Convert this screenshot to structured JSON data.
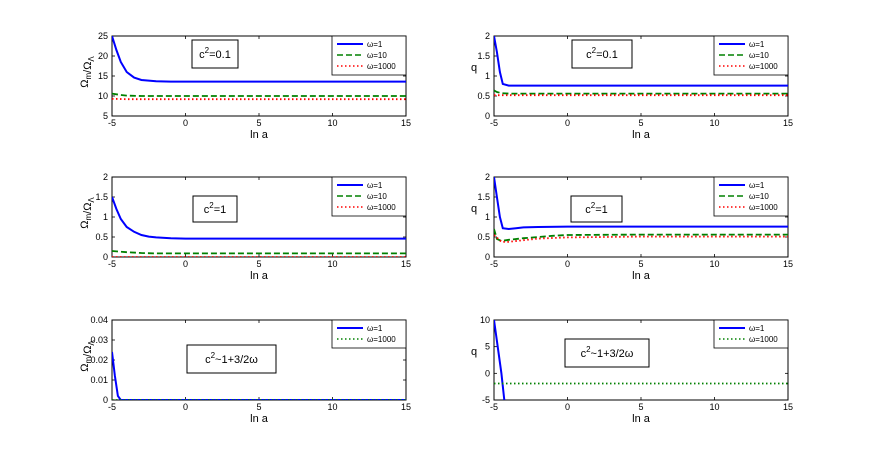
{
  "chart_data": [
    {
      "type": "line",
      "xlabel": "ln a",
      "ylabel": "Ω_m/Ω_Λ",
      "xlim": [
        -5,
        15
      ],
      "ylim": [
        5,
        25
      ],
      "xticks": [
        -5,
        0,
        5,
        10,
        15
      ],
      "yticks": [
        5,
        10,
        15,
        20,
        25
      ],
      "annotation": "c²=0.1",
      "legend_position": "top-right",
      "series": [
        {
          "name": "ω=1",
          "color": "#0000ff",
          "style": "solid",
          "x": [
            -5,
            -4.7,
            -4.4,
            -4,
            -3.5,
            -3,
            -2,
            -1,
            0,
            2,
            5,
            10,
            15
          ],
          "y": [
            25,
            21.5,
            18.5,
            16,
            14.6,
            14,
            13.7,
            13.6,
            13.6,
            13.6,
            13.6,
            13.6,
            13.6
          ]
        },
        {
          "name": "ω=10",
          "color": "#008000",
          "style": "dashed",
          "x": [
            -5,
            -4.5,
            -4,
            -3,
            -2,
            0,
            5,
            10,
            15
          ],
          "y": [
            10.6,
            10.3,
            10.1,
            10,
            10,
            10,
            10,
            10,
            10
          ]
        },
        {
          "name": "ω=1000",
          "color": "#ff0000",
          "style": "dotted",
          "x": [
            -5,
            -4,
            -2,
            0,
            5,
            10,
            15
          ],
          "y": [
            9.3,
            9.2,
            9.2,
            9.2,
            9.2,
            9.2,
            9.2
          ]
        }
      ]
    },
    {
      "type": "line",
      "xlabel": "ln a",
      "ylabel": "q",
      "xlim": [
        -5,
        15
      ],
      "ylim": [
        0,
        2
      ],
      "xticks": [
        -5,
        0,
        5,
        10,
        15
      ],
      "yticks": [
        0,
        0.5,
        1,
        1.5,
        2
      ],
      "annotation": "c²=0.1",
      "legend_position": "top-right",
      "series": [
        {
          "name": "ω=1",
          "color": "#0000ff",
          "style": "solid",
          "x": [
            -5,
            -4.8,
            -4.6,
            -4.4,
            -4,
            -3,
            0,
            5,
            10,
            15
          ],
          "y": [
            2,
            1.6,
            1.1,
            0.8,
            0.76,
            0.76,
            0.76,
            0.76,
            0.76,
            0.76
          ]
        },
        {
          "name": "ω=10",
          "color": "#008000",
          "style": "dashed",
          "x": [
            -5,
            -4.8,
            -4.5,
            -4,
            -2,
            0,
            5,
            10,
            15
          ],
          "y": [
            0.64,
            0.6,
            0.57,
            0.56,
            0.56,
            0.56,
            0.56,
            0.56,
            0.56
          ]
        },
        {
          "name": "ω=1000",
          "color": "#ff0000",
          "style": "dotted",
          "x": [
            -5,
            -4,
            -2,
            0,
            5,
            10,
            15
          ],
          "y": [
            0.52,
            0.52,
            0.52,
            0.52,
            0.52,
            0.52,
            0.52
          ]
        }
      ]
    },
    {
      "type": "line",
      "xlabel": "ln a",
      "ylabel": "Ω_m/Ω_Λ",
      "xlim": [
        -5,
        15
      ],
      "ylim": [
        0,
        2
      ],
      "xticks": [
        -5,
        0,
        5,
        10,
        15
      ],
      "yticks": [
        0,
        0.5,
        1,
        1.5,
        2
      ],
      "annotation": "c²=1",
      "legend_position": "top-right",
      "series": [
        {
          "name": "ω=1",
          "color": "#0000ff",
          "style": "solid",
          "x": [
            -5,
            -4.7,
            -4.4,
            -4,
            -3.5,
            -3,
            -2.5,
            -2,
            -1,
            0,
            2,
            5,
            10,
            15
          ],
          "y": [
            1.5,
            1.2,
            0.95,
            0.75,
            0.63,
            0.55,
            0.51,
            0.49,
            0.47,
            0.46,
            0.46,
            0.46,
            0.46,
            0.46
          ]
        },
        {
          "name": "ω=10",
          "color": "#008000",
          "style": "dashed",
          "x": [
            -5,
            -4,
            -3,
            -2,
            0,
            5,
            10,
            15
          ],
          "y": [
            0.15,
            0.12,
            0.1,
            0.09,
            0.09,
            0.09,
            0.09,
            0.09
          ]
        },
        {
          "name": "ω=1000",
          "color": "#ff0000",
          "style": "dotted",
          "x": [
            -5,
            0,
            5,
            10,
            15
          ],
          "y": [
            0,
            0,
            0,
            0,
            0
          ]
        }
      ]
    },
    {
      "type": "line",
      "xlabel": "ln a",
      "ylabel": "q",
      "xlim": [
        -5,
        15
      ],
      "ylim": [
        0,
        2
      ],
      "xticks": [
        -5,
        0,
        5,
        10,
        15
      ],
      "yticks": [
        0,
        0.5,
        1,
        1.5,
        2
      ],
      "annotation": "c²=1",
      "legend_position": "top-right",
      "series": [
        {
          "name": "ω=1",
          "color": "#0000ff",
          "style": "solid",
          "x": [
            -5,
            -4.8,
            -4.6,
            -4.4,
            -4,
            -3.5,
            -3,
            -2,
            0,
            5,
            10,
            15
          ],
          "y": [
            2,
            1.5,
            1.0,
            0.72,
            0.7,
            0.72,
            0.74,
            0.75,
            0.76,
            0.76,
            0.76,
            0.76
          ]
        },
        {
          "name": "ω=10",
          "color": "#008000",
          "style": "dashed",
          "x": [
            -5,
            -4.8,
            -4.5,
            -4,
            -3,
            -2,
            -1,
            0,
            5,
            10,
            15
          ],
          "y": [
            0.7,
            0.45,
            0.4,
            0.43,
            0.47,
            0.5,
            0.53,
            0.55,
            0.56,
            0.56,
            0.56
          ]
        },
        {
          "name": "ω=1000",
          "color": "#ff0000",
          "style": "dotted",
          "x": [
            -5,
            -4.5,
            -4,
            -3,
            -2,
            0,
            5,
            10,
            15
          ],
          "y": [
            0.55,
            0.38,
            0.38,
            0.42,
            0.46,
            0.49,
            0.51,
            0.51,
            0.51
          ]
        }
      ]
    },
    {
      "type": "line",
      "xlabel": "ln a",
      "ylabel": "Ω_m/Ω_Λ",
      "xlim": [
        -5,
        15
      ],
      "ylim": [
        0,
        0.04
      ],
      "xticks": [
        -5,
        0,
        5,
        10,
        15
      ],
      "yticks": [
        0,
        0.01,
        0.02,
        0.03,
        0.04
      ],
      "annotation": "c²~1+3/2ω",
      "legend_position": "top-right",
      "series": [
        {
          "name": "ω=1",
          "color": "#0000ff",
          "style": "solid",
          "x": [
            -5,
            -4.8,
            -4.6,
            -4.4,
            -4,
            0,
            5,
            10,
            15
          ],
          "y": [
            0.024,
            0.012,
            0.002,
            0,
            0,
            0,
            0,
            0,
            0
          ]
        },
        {
          "name": "ω=1000",
          "color": "#008000",
          "style": "dotted",
          "x": [
            -5,
            0,
            5,
            10,
            15
          ],
          "y": [
            0,
            0,
            0,
            0,
            0
          ]
        }
      ]
    },
    {
      "type": "line",
      "xlabel": "ln a",
      "ylabel": "q",
      "xlim": [
        -5,
        15
      ],
      "ylim": [
        -5,
        10
      ],
      "xticks": [
        -5,
        0,
        5,
        10,
        15
      ],
      "yticks": [
        -5,
        0,
        5,
        10
      ],
      "annotation": "c²~1+3/2ω",
      "legend_position": "top-right",
      "series": [
        {
          "name": "ω=1",
          "color": "#0000ff",
          "style": "solid",
          "x": [
            -5,
            -4.5,
            -4.3
          ],
          "y": [
            10,
            0,
            -5
          ]
        },
        {
          "name": "ω=1000",
          "color": "#008000",
          "style": "dotted",
          "x": [
            -5,
            0,
            5,
            10,
            15
          ],
          "y": [
            -1.9,
            -1.9,
            -1.9,
            -1.9,
            -1.9
          ]
        }
      ]
    }
  ]
}
